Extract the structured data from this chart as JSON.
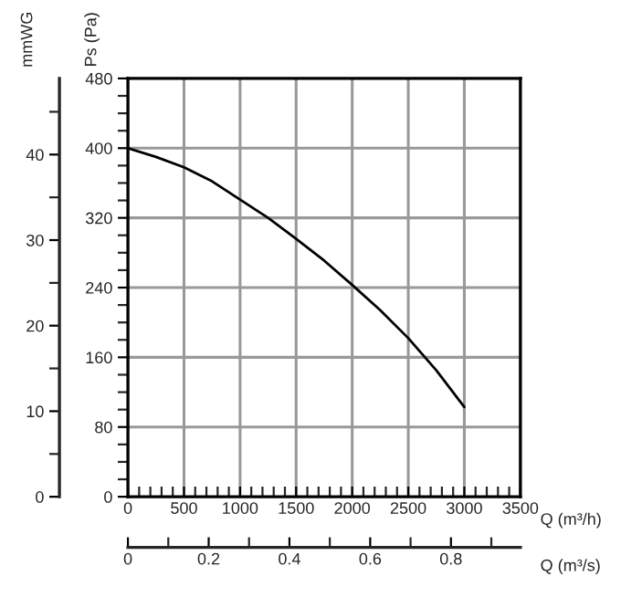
{
  "chart_data": {
    "type": "line",
    "xlabel": "Q (m³/h)",
    "ylabel": "Ps (Pa)",
    "y2label": "mmWG",
    "x2label": "Q (m³/s)",
    "series": [
      {
        "color": "#000000",
        "x": [
          0,
          250,
          500,
          750,
          1000,
          1250,
          1500,
          1750,
          2000,
          2250,
          2500,
          2750,
          3000
        ],
        "values": [
          400,
          390,
          378,
          362,
          341,
          320,
          296,
          271,
          243,
          214,
          182,
          145,
          103
        ]
      }
    ],
    "xlim": [
      0,
      3500
    ],
    "xticks": [
      0,
      {
        "value": 100,
        "label": null
      },
      {
        "value": 200,
        "label": null
      },
      {
        "value": 300,
        "label": null
      },
      {
        "value": 400,
        "label": null
      },
      500,
      {
        "value": 600,
        "label": null
      },
      {
        "value": 700,
        "label": null
      },
      {
        "value": 800,
        "label": null
      },
      {
        "value": 900,
        "label": null
      },
      1000,
      {
        "value": 1100,
        "label": null
      },
      {
        "value": 1200,
        "label": null
      },
      {
        "value": 1300,
        "label": null
      },
      {
        "value": 1400,
        "label": null
      },
      1500,
      {
        "value": 1600,
        "label": null
      },
      {
        "value": 1700,
        "label": null
      },
      {
        "value": 1800,
        "label": null
      },
      {
        "value": 1900,
        "label": null
      },
      2000,
      {
        "value": 2100,
        "label": null
      },
      {
        "value": 2200,
        "label": null
      },
      {
        "value": 2300,
        "label": null
      },
      {
        "value": 2400,
        "label": null
      },
      2500,
      {
        "value": 2600,
        "label": null
      },
      {
        "value": 2700,
        "label": null
      },
      {
        "value": 2800,
        "label": null
      },
      {
        "value": 2900,
        "label": null
      },
      3000,
      {
        "value": 3100,
        "label": null
      },
      {
        "value": 3200,
        "label": null
      },
      {
        "value": 3300,
        "label": null
      },
      {
        "value": 3400,
        "label": null
      },
      3500
    ],
    "ylim": [
      0,
      480
    ],
    "yticks": [
      0,
      {
        "value": 20,
        "label": null
      },
      {
        "value": 40,
        "label": null
      },
      {
        "value": 60,
        "label": null
      },
      80,
      {
        "value": 100,
        "label": null
      },
      {
        "value": 120,
        "label": null
      },
      {
        "value": 140,
        "label": null
      },
      160,
      {
        "value": 180,
        "label": null
      },
      {
        "value": 200,
        "label": null
      },
      {
        "value": 220,
        "label": null
      },
      240,
      {
        "value": 260,
        "label": null
      },
      {
        "value": 280,
        "label": null
      },
      {
        "value": 300,
        "label": null
      },
      320,
      {
        "value": 340,
        "label": null
      },
      {
        "value": 360,
        "label": null
      },
      {
        "value": 380,
        "label": null
      },
      400,
      {
        "value": 420,
        "label": null
      },
      {
        "value": 440,
        "label": null
      },
      {
        "value": 460,
        "label": null
      },
      480
    ],
    "y2lim": [
      0,
      48.9
    ],
    "y2ticks": [
      0,
      10,
      20,
      30,
      40
    ],
    "x2lim": [
      0,
      0.972
    ],
    "x2ticks": [
      0,
      0.2,
      0.4,
      0.6,
      0.8
    ],
    "grid": true,
    "legend": false
  }
}
